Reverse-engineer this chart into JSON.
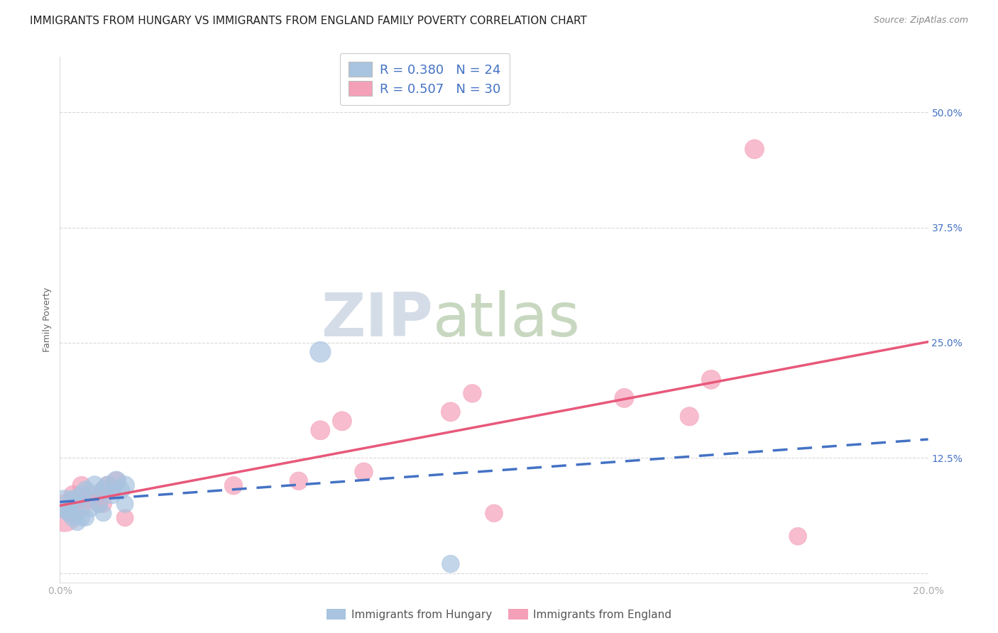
{
  "title": "IMMIGRANTS FROM HUNGARY VS IMMIGRANTS FROM ENGLAND FAMILY POVERTY CORRELATION CHART",
  "source": "Source: ZipAtlas.com",
  "ylabel": "Family Poverty",
  "xlim": [
    0.0,
    0.2
  ],
  "ylim": [
    -0.01,
    0.56
  ],
  "ytick_positions": [
    0.0,
    0.125,
    0.25,
    0.375,
    0.5
  ],
  "ytick_labels_right": [
    "",
    "12.5%",
    "25.0%",
    "37.5%",
    "50.0%"
  ],
  "xtick_positions": [
    0.0,
    0.05,
    0.1,
    0.15,
    0.2
  ],
  "xtick_labels": [
    "0.0%",
    "",
    "",
    "",
    "20.0%"
  ],
  "hungary_color": "#a8c4e0",
  "england_color": "#f4a0b8",
  "hungary_line_color": "#4472c4",
  "england_line_color": "#e8587a",
  "right_tick_color": "#4472c4",
  "hungary_scatter_x": [
    0.001,
    0.002,
    0.002,
    0.003,
    0.003,
    0.004,
    0.004,
    0.005,
    0.005,
    0.006,
    0.006,
    0.007,
    0.008,
    0.009,
    0.01,
    0.01,
    0.011,
    0.012,
    0.013,
    0.014,
    0.015,
    0.015,
    0.06,
    0.09
  ],
  "hungary_scatter_y": [
    0.075,
    0.07,
    0.065,
    0.08,
    0.06,
    0.075,
    0.055,
    0.085,
    0.06,
    0.09,
    0.06,
    0.07,
    0.095,
    0.075,
    0.09,
    0.065,
    0.095,
    0.085,
    0.1,
    0.09,
    0.095,
    0.075,
    0.24,
    0.01
  ],
  "hungary_scatter_size": [
    800,
    400,
    300,
    350,
    300,
    300,
    280,
    350,
    280,
    350,
    280,
    300,
    380,
    320,
    350,
    280,
    380,
    340,
    400,
    350,
    380,
    300,
    450,
    320
  ],
  "england_scatter_x": [
    0.001,
    0.002,
    0.003,
    0.003,
    0.004,
    0.005,
    0.005,
    0.006,
    0.007,
    0.008,
    0.009,
    0.01,
    0.01,
    0.011,
    0.012,
    0.013,
    0.015,
    0.04,
    0.055,
    0.06,
    0.065,
    0.07,
    0.09,
    0.095,
    0.1,
    0.13,
    0.145,
    0.15,
    0.16,
    0.17
  ],
  "england_scatter_y": [
    0.065,
    0.07,
    0.085,
    0.065,
    0.08,
    0.07,
    0.095,
    0.08,
    0.085,
    0.08,
    0.075,
    0.09,
    0.075,
    0.095,
    0.09,
    0.1,
    0.06,
    0.095,
    0.1,
    0.155,
    0.165,
    0.11,
    0.175,
    0.195,
    0.065,
    0.19,
    0.17,
    0.21,
    0.46,
    0.04
  ],
  "england_scatter_size": [
    1400,
    500,
    350,
    320,
    320,
    320,
    350,
    320,
    340,
    320,
    300,
    340,
    300,
    340,
    320,
    340,
    300,
    340,
    340,
    380,
    380,
    340,
    380,
    340,
    320,
    380,
    360,
    380,
    380,
    320
  ],
  "watermark_zip": "ZIP",
  "watermark_atlas": "atlas",
  "background_color": "#ffffff",
  "grid_color": "#d8d8d8",
  "title_fontsize": 11,
  "axis_label_fontsize": 9,
  "tick_fontsize": 10,
  "legend_fontsize": 13
}
